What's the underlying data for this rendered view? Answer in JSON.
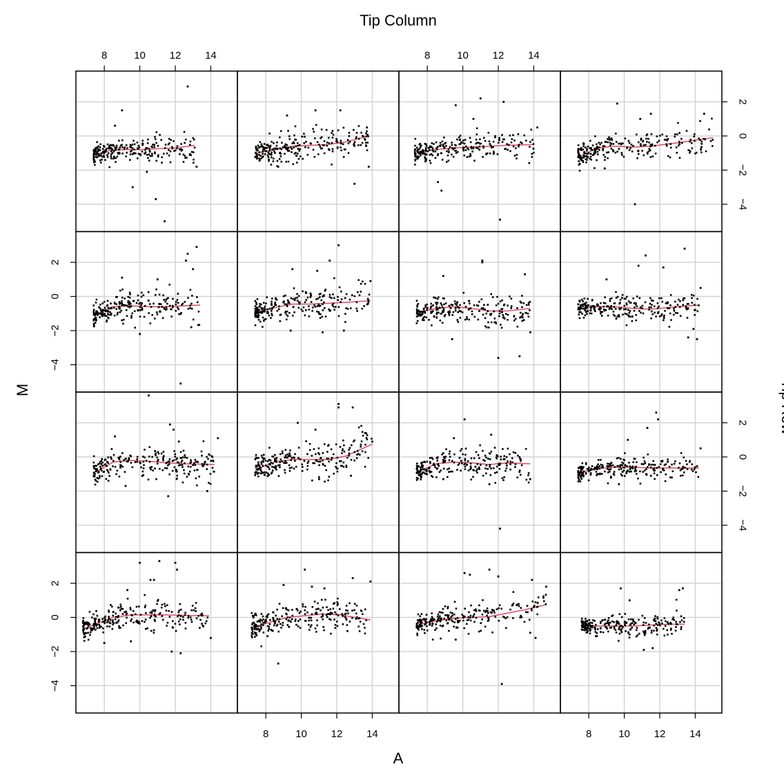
{
  "chart_data": {
    "type": "scatter",
    "layout": "trellis",
    "title": "",
    "xlabel": "A",
    "ylabel": "M",
    "top_strip_label": "Tip Column",
    "right_strip_label": "Tip Row",
    "xlim": [
      6.4,
      15.5
    ],
    "ylim": [
      -5.6,
      3.8
    ],
    "x_ticks": [
      8,
      10,
      12,
      14
    ],
    "y_ticks": [
      -4,
      -2,
      0,
      2
    ],
    "x_tick_labels": [
      "8",
      "10",
      "12",
      "14"
    ],
    "y_tick_labels": [
      "−4",
      "−2",
      "0",
      "2"
    ],
    "grid": true,
    "colors": {
      "points": "#000000",
      "smooth": "#df536b",
      "grid": "#d3d3d3",
      "frame": "#000000"
    },
    "panels": [
      {
        "row": 1,
        "col": 1,
        "smooth": [
          [
            7.5,
            -1.1
          ],
          [
            8.3,
            -0.85
          ],
          [
            9,
            -0.8
          ],
          [
            10,
            -0.8
          ],
          [
            11,
            -0.75
          ],
          [
            12,
            -0.7
          ],
          [
            13.1,
            -0.55
          ]
        ],
        "outliers": [
          [
            12.7,
            2.9
          ],
          [
            11.4,
            -5.0
          ],
          [
            10.9,
            -3.7
          ],
          [
            9.6,
            -3.0
          ],
          [
            9.0,
            1.5
          ],
          [
            10.4,
            -2.1
          ],
          [
            13.2,
            -1.8
          ],
          [
            8.6,
            0.6
          ]
        ],
        "center": -0.9,
        "spread": 0.4,
        "x_range": [
          7.4,
          13.1
        ]
      },
      {
        "row": 1,
        "col": 2,
        "smooth": [
          [
            7.5,
            -1.0
          ],
          [
            8.5,
            -0.8
          ],
          [
            9.5,
            -0.6
          ],
          [
            10.5,
            -0.55
          ],
          [
            11.5,
            -0.5
          ],
          [
            12.5,
            -0.35
          ],
          [
            13.8,
            0.0
          ]
        ],
        "outliers": [
          [
            13.0,
            -2.8
          ],
          [
            12.2,
            1.5
          ],
          [
            10.8,
            1.5
          ],
          [
            13.8,
            -1.8
          ],
          [
            9.2,
            1.2
          ],
          [
            8.7,
            -1.8
          ],
          [
            13.7,
            0.5
          ]
        ],
        "center": -0.7,
        "spread": 0.5,
        "x_range": [
          7.4,
          13.8
        ]
      },
      {
        "row": 1,
        "col": 3,
        "smooth": [
          [
            7.4,
            -0.95
          ],
          [
            8.5,
            -0.8
          ],
          [
            9.5,
            -0.7
          ],
          [
            10.5,
            -0.65
          ],
          [
            11.5,
            -0.6
          ],
          [
            12.5,
            -0.55
          ],
          [
            14.0,
            -0.5
          ]
        ],
        "outliers": [
          [
            8.8,
            -3.2
          ],
          [
            8.6,
            -2.7
          ],
          [
            12.1,
            -4.9
          ],
          [
            11.0,
            2.2
          ],
          [
            12.3,
            2.0
          ],
          [
            9.6,
            1.8
          ],
          [
            14.2,
            0.5
          ],
          [
            10.6,
            1.0
          ]
        ],
        "center": -0.8,
        "spread": 0.45,
        "x_range": [
          7.3,
          14.0
        ]
      },
      {
        "row": 1,
        "col": 4,
        "smooth": [
          [
            7.5,
            -1.2
          ],
          [
            8.5,
            -0.7
          ],
          [
            9.5,
            -0.6
          ],
          [
            10.5,
            -0.65
          ],
          [
            11.5,
            -0.6
          ],
          [
            13,
            -0.4
          ],
          [
            15.0,
            -0.1
          ]
        ],
        "outliers": [
          [
            10.6,
            -4.0
          ],
          [
            9.6,
            1.9
          ],
          [
            11.5,
            1.3
          ],
          [
            14.5,
            1.3
          ],
          [
            8.9,
            -1.9
          ],
          [
            10.9,
            1.0
          ]
        ],
        "center": -0.7,
        "spread": 0.45,
        "x_range": [
          7.4,
          15.0
        ]
      },
      {
        "row": 2,
        "col": 1,
        "smooth": [
          [
            7.5,
            -1.1
          ],
          [
            8.5,
            -0.6
          ],
          [
            9.5,
            -0.55
          ],
          [
            10.5,
            -0.6
          ],
          [
            11.5,
            -0.6
          ],
          [
            12.5,
            -0.55
          ],
          [
            13.4,
            -0.5
          ]
        ],
        "outliers": [
          [
            12.3,
            -5.1
          ],
          [
            13.2,
            2.9
          ],
          [
            12.7,
            2.5
          ],
          [
            12.6,
            2.1
          ],
          [
            13.0,
            1.6
          ],
          [
            12.9,
            -1.8
          ],
          [
            10.0,
            -2.2
          ],
          [
            9.0,
            1.1
          ],
          [
            11.0,
            1.0
          ]
        ],
        "center": -0.6,
        "spread": 0.45,
        "x_range": [
          7.4,
          13.4
        ]
      },
      {
        "row": 2,
        "col": 2,
        "smooth": [
          [
            7.5,
            -0.9
          ],
          [
            8.5,
            -0.65
          ],
          [
            9.5,
            -0.45
          ],
          [
            10.5,
            -0.45
          ],
          [
            11.5,
            -0.4
          ],
          [
            12.5,
            -0.35
          ],
          [
            13.9,
            -0.25
          ]
        ],
        "outliers": [
          [
            12.1,
            3.0
          ],
          [
            11.6,
            2.1
          ],
          [
            10.9,
            1.5
          ],
          [
            9.5,
            1.6
          ],
          [
            12.4,
            -2.0
          ],
          [
            11.2,
            -2.1
          ],
          [
            9.4,
            -2.0
          ],
          [
            13.9,
            0.9
          ]
        ],
        "center": -0.55,
        "spread": 0.5,
        "x_range": [
          7.4,
          13.9
        ]
      },
      {
        "row": 2,
        "col": 3,
        "smooth": [
          [
            7.5,
            -0.95
          ],
          [
            8.5,
            -0.7
          ],
          [
            9.5,
            -0.6
          ],
          [
            10.5,
            -0.7
          ],
          [
            11.5,
            -0.85
          ],
          [
            12.5,
            -0.85
          ],
          [
            13.8,
            -0.7
          ]
        ],
        "outliers": [
          [
            12.0,
            -3.6
          ],
          [
            13.2,
            -3.5
          ],
          [
            9.4,
            -2.5
          ],
          [
            11.1,
            2.1
          ],
          [
            11.1,
            2.0
          ],
          [
            13.8,
            -2.1
          ],
          [
            13.5,
            1.3
          ],
          [
            8.9,
            1.2
          ]
        ],
        "center": -0.75,
        "spread": 0.45,
        "x_range": [
          7.4,
          13.8
        ]
      },
      {
        "row": 2,
        "col": 4,
        "smooth": [
          [
            7.5,
            -0.7
          ],
          [
            8.5,
            -0.6
          ],
          [
            9.5,
            -0.6
          ],
          [
            10.5,
            -0.7
          ],
          [
            11.5,
            -0.75
          ],
          [
            12.5,
            -0.65
          ],
          [
            14.2,
            -0.5
          ]
        ],
        "outliers": [
          [
            13.4,
            2.8
          ],
          [
            12.2,
            1.7
          ],
          [
            11.2,
            2.4
          ],
          [
            10.8,
            1.8
          ],
          [
            13.6,
            -2.4
          ],
          [
            14.1,
            -2.5
          ],
          [
            13.9,
            -1.9
          ],
          [
            9.0,
            1.0
          ],
          [
            14.3,
            0.5
          ]
        ],
        "center": -0.65,
        "spread": 0.4,
        "x_range": [
          7.4,
          14.2
        ]
      },
      {
        "row": 3,
        "col": 1,
        "smooth": [
          [
            7.5,
            -0.9
          ],
          [
            8.5,
            -0.3
          ],
          [
            9.5,
            -0.2
          ],
          [
            10.5,
            -0.25
          ],
          [
            11.5,
            -0.35
          ],
          [
            12.5,
            -0.4
          ],
          [
            14.2,
            -0.45
          ]
        ],
        "outliers": [
          [
            10.5,
            3.6
          ],
          [
            11.7,
            1.9
          ],
          [
            11.9,
            1.6
          ],
          [
            12.2,
            0.9
          ],
          [
            11.6,
            -2.3
          ],
          [
            9.2,
            -1.7
          ],
          [
            13.8,
            -2.0
          ],
          [
            14.4,
            1.1
          ],
          [
            8.6,
            1.2
          ]
        ],
        "center": -0.3,
        "spread": 0.45,
        "x_range": [
          7.4,
          14.2
        ]
      },
      {
        "row": 3,
        "col": 2,
        "smooth": [
          [
            7.5,
            -0.7
          ],
          [
            8.5,
            -0.3
          ],
          [
            9.5,
            -0.15
          ],
          [
            10.5,
            -0.15
          ],
          [
            11.5,
            -0.15
          ],
          [
            12.5,
            0.05
          ],
          [
            14.0,
            0.75
          ]
        ],
        "outliers": [
          [
            12.1,
            3.1
          ],
          [
            12.1,
            2.9
          ],
          [
            12.9,
            2.9
          ],
          [
            13.6,
            1.4
          ],
          [
            9.8,
            2.0
          ],
          [
            10.8,
            1.6
          ],
          [
            11.0,
            -1.3
          ],
          [
            12.8,
            -1.1
          ],
          [
            14.0,
            0.9
          ]
        ],
        "center": -0.25,
        "spread": 0.5,
        "x_range": [
          7.4,
          14.0
        ]
      },
      {
        "row": 3,
        "col": 3,
        "smooth": [
          [
            7.5,
            -0.85
          ],
          [
            8.5,
            -0.4
          ],
          [
            9.5,
            -0.3
          ],
          [
            10.5,
            -0.35
          ],
          [
            11.5,
            -0.45
          ],
          [
            12.5,
            -0.35
          ],
          [
            13.8,
            -0.4
          ]
        ],
        "outliers": [
          [
            12.1,
            -4.2
          ],
          [
            10.1,
            2.2
          ],
          [
            11.6,
            1.3
          ],
          [
            8.9,
            -1.3
          ],
          [
            11.5,
            -1.6
          ],
          [
            13.8,
            -1.3
          ],
          [
            9.5,
            1.1
          ]
        ],
        "center": -0.4,
        "spread": 0.45,
        "x_range": [
          7.4,
          13.8
        ]
      },
      {
        "row": 3,
        "col": 4,
        "smooth": [
          [
            7.5,
            -0.9
          ],
          [
            8.5,
            -0.7
          ],
          [
            9.5,
            -0.6
          ],
          [
            10.5,
            -0.6
          ],
          [
            11.5,
            -0.65
          ],
          [
            12.5,
            -0.65
          ],
          [
            14.2,
            -0.65
          ]
        ],
        "outliers": [
          [
            11.8,
            2.6
          ],
          [
            11.9,
            2.2
          ],
          [
            11.3,
            1.7
          ],
          [
            10.2,
            1.0
          ],
          [
            11.5,
            -1.1
          ],
          [
            9.7,
            -1.6
          ],
          [
            12.6,
            -1.2
          ],
          [
            14.3,
            0.5
          ]
        ],
        "center": -0.65,
        "spread": 0.35,
        "x_range": [
          7.4,
          14.2
        ]
      },
      {
        "row": 4,
        "col": 1,
        "smooth": [
          [
            6.8,
            -0.7
          ],
          [
            7.5,
            -0.4
          ],
          [
            8.5,
            0.0
          ],
          [
            9.5,
            0.15
          ],
          [
            10.5,
            0.15
          ],
          [
            11.5,
            0.15
          ],
          [
            12.5,
            0.12
          ],
          [
            13.9,
            0.1
          ]
        ],
        "outliers": [
          [
            10.0,
            3.2
          ],
          [
            11.1,
            3.3
          ],
          [
            12.0,
            3.2
          ],
          [
            12.1,
            2.8
          ],
          [
            10.6,
            2.2
          ],
          [
            10.8,
            2.2
          ],
          [
            11.8,
            -2.0
          ],
          [
            12.3,
            -2.1
          ],
          [
            9.5,
            -1.4
          ],
          [
            8.0,
            -1.5
          ],
          [
            14.0,
            -1.2
          ],
          [
            9.3,
            1.6
          ]
        ],
        "center": 0.0,
        "spread": 0.45,
        "x_range": [
          6.8,
          13.9
        ]
      },
      {
        "row": 4,
        "col": 2,
        "smooth": [
          [
            7.2,
            -0.6
          ],
          [
            8.2,
            -0.3
          ],
          [
            9.2,
            0.0
          ],
          [
            10.2,
            0.1
          ],
          [
            11.2,
            0.2
          ],
          [
            12.2,
            0.15
          ],
          [
            13.9,
            -0.15
          ]
        ],
        "outliers": [
          [
            8.7,
            -2.7
          ],
          [
            10.2,
            2.8
          ],
          [
            12.9,
            2.3
          ],
          [
            9.0,
            1.9
          ],
          [
            13.9,
            2.1
          ],
          [
            11.3,
            1.7
          ],
          [
            10.6,
            1.8
          ],
          [
            12.6,
            -0.8
          ],
          [
            8.1,
            -1.1
          ]
        ],
        "center": 0.0,
        "spread": 0.45,
        "x_range": [
          7.2,
          13.9
        ]
      },
      {
        "row": 4,
        "col": 3,
        "smooth": [
          [
            7.5,
            -0.4
          ],
          [
            8.5,
            -0.2
          ],
          [
            9.5,
            -0.05
          ],
          [
            10.5,
            0.0
          ],
          [
            11.5,
            0.05
          ],
          [
            12.5,
            0.25
          ],
          [
            13.5,
            0.45
          ],
          [
            14.7,
            0.75
          ]
        ],
        "outliers": [
          [
            12.2,
            -3.9
          ],
          [
            10.1,
            2.6
          ],
          [
            11.5,
            2.8
          ],
          [
            12.0,
            2.4
          ],
          [
            13.9,
            2.2
          ],
          [
            10.4,
            2.5
          ],
          [
            14.7,
            1.8
          ],
          [
            13.8,
            -0.9
          ],
          [
            14.1,
            -1.2
          ],
          [
            9.6,
            -1.3
          ]
        ],
        "center": 0.0,
        "spread": 0.45,
        "x_range": [
          7.4,
          14.7
        ]
      },
      {
        "row": 4,
        "col": 4,
        "smooth": [
          [
            7.6,
            -0.45
          ],
          [
            8.5,
            -0.5
          ],
          [
            9.5,
            -0.5
          ],
          [
            10.5,
            -0.5
          ],
          [
            11.5,
            -0.45
          ],
          [
            12.5,
            -0.4
          ],
          [
            13.4,
            -0.4
          ]
        ],
        "outliers": [
          [
            9.8,
            1.7
          ],
          [
            13.3,
            1.7
          ],
          [
            13.1,
            1.6
          ],
          [
            11.1,
            -1.9
          ],
          [
            11.6,
            -1.8
          ],
          [
            10.3,
            1.0
          ],
          [
            8.4,
            -1.1
          ]
        ],
        "center": -0.5,
        "spread": 0.35,
        "x_range": [
          7.6,
          13.4
        ]
      }
    ]
  }
}
